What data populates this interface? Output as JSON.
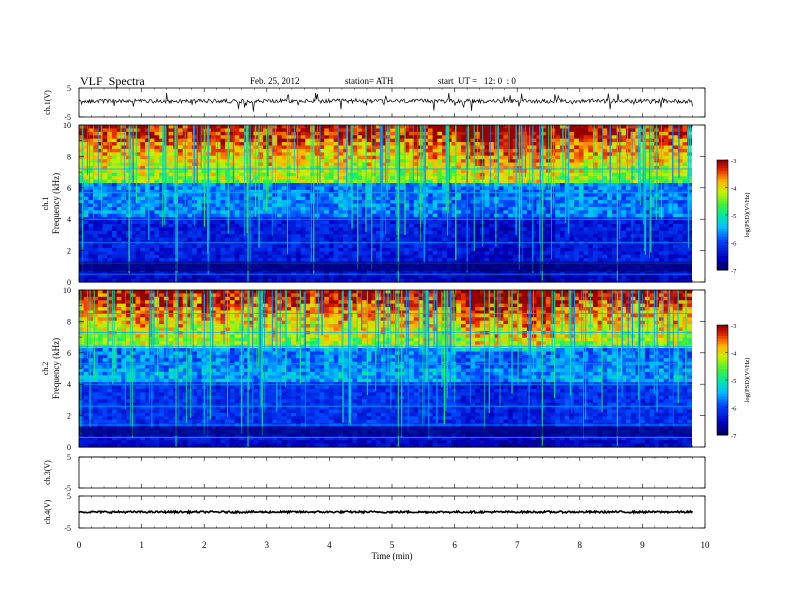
{
  "header": {
    "title": "VLF  Spectra",
    "date": "Feb. 25, 2012",
    "station": "station= ATH",
    "start": "start  UT =   12: 0  : 0"
  },
  "chart_data": [
    {
      "type": "line",
      "name": "ch1-waveform",
      "ylabel": "ch.1(V)",
      "ylim": [
        -5,
        5
      ],
      "yticks": [
        "5",
        "-5"
      ],
      "xlim": [
        0,
        10
      ],
      "baseline": 0.5
    },
    {
      "type": "heatmap",
      "name": "ch1-spectrogram",
      "ylabel": "ch.1\nFrequency (kHz)",
      "ylim": [
        0,
        10
      ],
      "yticks": [
        "0",
        "2",
        "4",
        "6",
        "8",
        "10"
      ],
      "colorbar": {
        "label": "log(PSD)(V²/Hz)",
        "range": [
          -7,
          -3
        ],
        "ticks": [
          "-3",
          "-4",
          "-5",
          "-6",
          "-7"
        ]
      }
    },
    {
      "type": "heatmap",
      "name": "ch2-spectrogram",
      "ylabel": "ch.2\nFrequency (kHz)",
      "ylim": [
        0,
        10
      ],
      "yticks": [
        "0",
        "2",
        "4",
        "6",
        "8",
        "10"
      ],
      "colorbar": {
        "label": "log(PSD)(V²/Hz)",
        "range": [
          -7,
          -3
        ],
        "ticks": [
          "-3",
          "-4",
          "-5",
          "-6",
          "-7"
        ]
      }
    },
    {
      "type": "line",
      "name": "ch3-waveform",
      "ylabel": "ch.3(V)",
      "ylim": [
        -5,
        5
      ],
      "yticks": [
        "5",
        "-5"
      ],
      "baseline": 5
    },
    {
      "type": "line",
      "name": "ch4-waveform",
      "ylabel": "ch.4(V)",
      "ylim": [
        -5,
        5
      ],
      "yticks": [
        "5",
        "-5"
      ],
      "baseline": 0
    }
  ],
  "xaxis": {
    "label": "Time  (min)",
    "range": [
      0,
      10
    ],
    "ticks": [
      "0",
      "1",
      "2",
      "3",
      "4",
      "5",
      "6",
      "7",
      "8",
      "9",
      "10"
    ],
    "data_end": 9.8
  }
}
